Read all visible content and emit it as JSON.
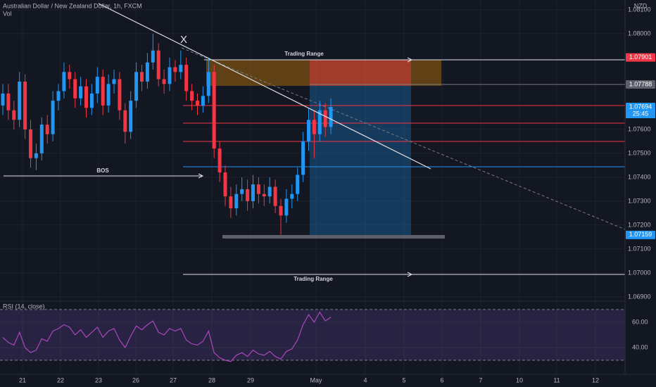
{
  "header": {
    "title": "Australian Dollar / New Zealand Dollar, 1h, FXCM",
    "volume_label": "Vol",
    "currency": "NZD"
  },
  "annotations": [
    "Trading Range",
    "BOS",
    "Trading Range",
    "X"
  ],
  "chart_data": [
    {
      "type": "candlestick",
      "up_color": "#2196f3",
      "down_color": "#f23645",
      "grid": true,
      "ylim": [
        1.06882,
        1.08141
      ],
      "yticks": [
        {
          "value": 1.081,
          "label": "1.08100"
        },
        {
          "value": 1.08,
          "label": "1.08000"
        },
        {
          "value": 1.076,
          "label": "1.07600"
        },
        {
          "value": 1.075,
          "label": "1.07500"
        },
        {
          "value": 1.074,
          "label": "1.07400"
        },
        {
          "value": 1.073,
          "label": "1.07300"
        },
        {
          "value": 1.072,
          "label": "1.07200"
        },
        {
          "value": 1.071,
          "label": "1.07100"
        },
        {
          "value": 1.07,
          "label": "1.07000"
        },
        {
          "value": 1.069,
          "label": "1.06900"
        }
      ],
      "x_axis_labels": [
        "21",
        "22",
        "23",
        "26",
        "27",
        "28",
        "29",
        "May",
        "4",
        "5",
        "6",
        "7",
        "10",
        "11",
        "12"
      ],
      "price_labels": [
        {
          "value": 1.07901,
          "color": "#f23645"
        },
        {
          "value": 1.07788,
          "color": "#5d606b"
        },
        {
          "value": 1.07694,
          "color": "#2196f3",
          "countdown": "25:45"
        },
        {
          "value": 1.07159,
          "color": "#2196f3"
        }
      ],
      "open": [
        1.077,
        1.0775,
        1.0768,
        1.0764,
        1.078,
        1.076,
        1.0748,
        1.075,
        1.0762,
        1.0758,
        1.0772,
        1.0776,
        1.0784,
        1.0781,
        1.0773,
        1.0778,
        1.0769,
        1.0775,
        1.0782,
        1.077,
        1.0779,
        1.0781,
        1.0768,
        1.0759,
        1.0772,
        1.0784,
        1.078,
        1.0788,
        1.0793,
        1.0781,
        1.0779,
        1.0786,
        1.0784,
        1.0787,
        1.0776,
        1.0772,
        1.077,
        1.0774,
        1.0784,
        1.0752,
        1.0742,
        1.0732,
        1.0727,
        1.0733,
        1.0735,
        1.073,
        1.0737,
        1.0733,
        1.0732,
        1.0736,
        1.0728,
        1.0724,
        1.0731,
        1.0733,
        1.0741,
        1.0755,
        1.0764,
        1.0758,
        1.0768,
        1.0761
      ],
      "high": [
        1.0779,
        1.0779,
        1.0772,
        1.0784,
        1.0783,
        1.0764,
        1.0754,
        1.0765,
        1.0766,
        1.0776,
        1.0779,
        1.0788,
        1.0787,
        1.0784,
        1.0782,
        1.0781,
        1.0779,
        1.0786,
        1.0785,
        1.0783,
        1.0785,
        1.0784,
        1.0771,
        1.0776,
        1.0788,
        1.0787,
        1.0792,
        1.08,
        1.0796,
        1.0785,
        1.079,
        1.0789,
        1.0793,
        1.079,
        1.0779,
        1.0775,
        1.0778,
        1.079,
        1.0787,
        1.0755,
        1.0745,
        1.0736,
        1.0737,
        1.074,
        1.0739,
        1.0741,
        1.074,
        1.0737,
        1.074,
        1.0739,
        1.0731,
        1.0735,
        1.0737,
        1.0744,
        1.0759,
        1.0769,
        1.0768,
        1.0772,
        1.0771,
        1.0773
      ],
      "low": [
        1.0766,
        1.0764,
        1.076,
        1.0761,
        1.0756,
        1.0744,
        1.0743,
        1.0747,
        1.0754,
        1.0755,
        1.0768,
        1.0773,
        1.0777,
        1.0769,
        1.077,
        1.0765,
        1.0766,
        1.0771,
        1.0766,
        1.0767,
        1.0775,
        1.0764,
        1.0754,
        1.0756,
        1.0769,
        1.0776,
        1.0777,
        1.0785,
        1.0778,
        1.0775,
        1.0776,
        1.078,
        1.0781,
        1.0772,
        1.0768,
        1.0766,
        1.0767,
        1.0771,
        1.0748,
        1.0738,
        1.0728,
        1.0723,
        1.0724,
        1.073,
        1.0726,
        1.0727,
        1.0729,
        1.0728,
        1.0729,
        1.0725,
        1.0716,
        1.0721,
        1.0727,
        1.073,
        1.0738,
        1.0751,
        1.0748,
        1.0755,
        1.0757,
        1.0758
      ],
      "close": [
        1.0775,
        1.0768,
        1.0764,
        1.078,
        1.076,
        1.0748,
        1.075,
        1.0762,
        1.0758,
        1.0772,
        1.0776,
        1.0784,
        1.0781,
        1.0773,
        1.0778,
        1.0769,
        1.0775,
        1.0782,
        1.077,
        1.0779,
        1.0781,
        1.0768,
        1.0759,
        1.0772,
        1.0784,
        1.078,
        1.0788,
        1.0793,
        1.0781,
        1.0779,
        1.0786,
        1.0784,
        1.0787,
        1.0776,
        1.0772,
        1.077,
        1.0774,
        1.0784,
        1.0752,
        1.0742,
        1.0732,
        1.0727,
        1.0733,
        1.0735,
        1.073,
        1.0737,
        1.0733,
        1.0732,
        1.0736,
        1.0728,
        1.0724,
        1.0731,
        1.0733,
        1.0741,
        1.0755,
        1.0764,
        1.0758,
        1.0768,
        1.0761,
        1.07694
      ]
    },
    {
      "type": "line",
      "title": "RSI (14, close)",
      "color": "#ab47bc",
      "band_color": "#7e57c2",
      "ylim": [
        20,
        75.5
      ],
      "bands": [
        30,
        70
      ],
      "yticks": [
        {
          "value": 60,
          "label": "60.00"
        },
        {
          "value": 40,
          "label": "40.00"
        }
      ],
      "values": [
        48,
        44,
        42,
        52,
        40,
        36,
        38,
        47,
        45,
        53,
        55,
        58,
        56,
        50,
        54,
        48,
        52,
        56,
        48,
        53,
        55,
        46,
        40,
        49,
        57,
        54,
        58,
        61,
        52,
        50,
        55,
        53,
        55,
        46,
        43,
        42,
        45,
        53,
        36,
        32,
        30,
        29,
        34,
        36,
        33,
        38,
        35,
        34,
        37,
        33,
        31,
        37,
        39,
        46,
        58,
        66,
        60,
        68,
        61,
        64
      ]
    }
  ]
}
